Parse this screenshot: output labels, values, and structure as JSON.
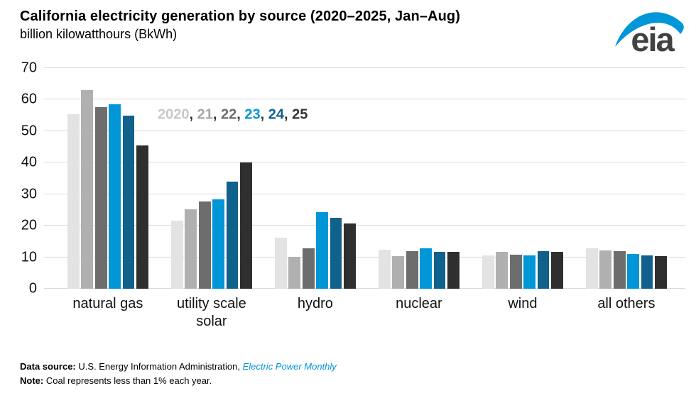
{
  "header": {
    "title": "California electricity generation by source (2020–2025, Jan–Aug)",
    "subtitle": "billion kilowatthours (BkWh)",
    "logo_text": "eia"
  },
  "colors": {
    "accent_blue": "#0096d7",
    "dark_blue": "#10618c",
    "charcoal": "#2f2f2f",
    "gridline": "#d9d9d9"
  },
  "legend": {
    "separator": ", ",
    "items": [
      {
        "label": "2020",
        "color": "#c8c8c8"
      },
      {
        "label": "21",
        "color": "#a6a6a6"
      },
      {
        "label": "22",
        "color": "#6d6d6d"
      },
      {
        "label": "23",
        "color": "#0096d7"
      },
      {
        "label": "24",
        "color": "#10618c"
      },
      {
        "label": "25",
        "color": "#333333"
      }
    ]
  },
  "chart_data": {
    "type": "bar",
    "title": "California electricity generation by source (2020–2025, Jan–Aug)",
    "ylabel": "billion kilowatthours (BkWh)",
    "xlabel": "",
    "ylim": [
      0,
      70
    ],
    "yticks": [
      0,
      10,
      20,
      30,
      40,
      50,
      60,
      70
    ],
    "grid": true,
    "legend_position": "inside-top-left",
    "categories": [
      "natural gas",
      "utility scale solar",
      "hydro",
      "nuclear",
      "wind",
      "all others"
    ],
    "series": [
      {
        "name": "2020",
        "color": "#e3e3e3",
        "values": [
          55.3,
          21.6,
          16.2,
          12.4,
          10.5,
          12.9
        ]
      },
      {
        "name": "21",
        "color": "#b0b0b0",
        "values": [
          63.1,
          25.2,
          10.2,
          10.4,
          11.7,
          12.2
        ]
      },
      {
        "name": "22",
        "color": "#6d6d6d",
        "values": [
          57.7,
          27.7,
          12.8,
          12.0,
          10.9,
          11.9
        ]
      },
      {
        "name": "23",
        "color": "#0096d7",
        "values": [
          58.6,
          28.4,
          24.2,
          12.9,
          10.5,
          11.1
        ]
      },
      {
        "name": "24",
        "color": "#10618c",
        "values": [
          54.9,
          34.1,
          22.5,
          11.8,
          11.9,
          10.5
        ]
      },
      {
        "name": "25",
        "color": "#2f2f2f",
        "values": [
          45.4,
          40.0,
          20.8,
          11.8,
          11.6,
          10.4
        ]
      }
    ]
  },
  "footer": {
    "source_label": "Data source:",
    "source_text": " U.S. Energy Information Administration, ",
    "source_link": "Electric Power Monthly",
    "note_label": "Note:",
    "note_text": " Coal represents less than 1% each year."
  }
}
